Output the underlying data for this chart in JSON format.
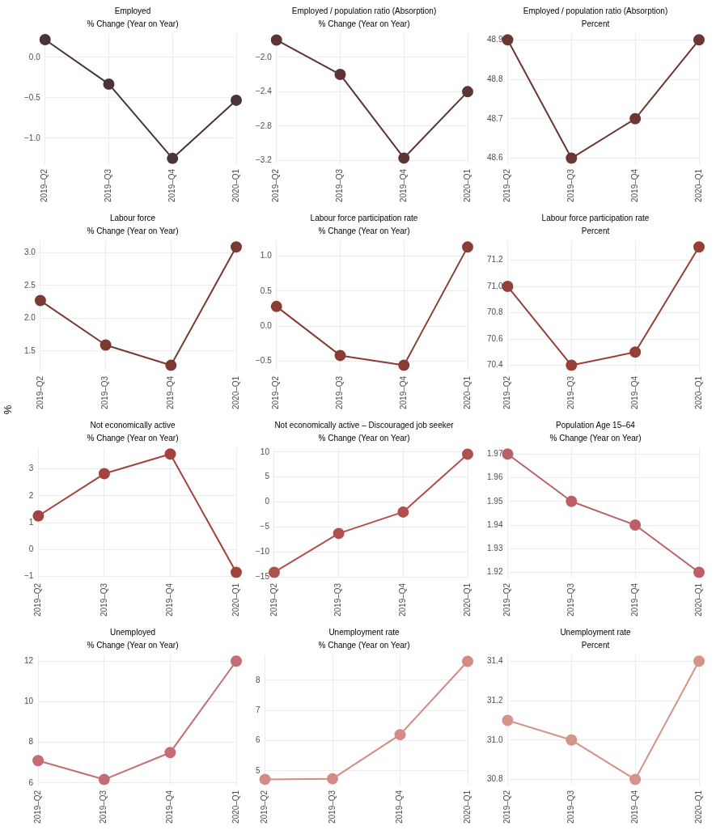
{
  "chart_data": [
    {
      "type": "line",
      "title": "Employed",
      "subtitle": "% Change (Year on Year)",
      "categories": [
        "2019–Q2",
        "2019–Q3",
        "2019–Q4",
        "2020–Q1"
      ],
      "values": [
        0.22,
        -0.33,
        -1.25,
        -0.53
      ],
      "color": "#4b3439",
      "ylim": [
        -1.32,
        0.29
      ],
      "yticks": [
        {
          "value": -1,
          "label": "−1.0"
        },
        {
          "value": -0.5,
          "label": "−0.5"
        },
        {
          "value": 0,
          "label": "0.0"
        }
      ],
      "grid": true,
      "marker": "circle",
      "legend": false
    },
    {
      "type": "line",
      "title": "Employed / population ratio (Absorption)",
      "subtitle": "% Change (Year on Year)",
      "categories": [
        "2019–Q2",
        "2019–Q3",
        "2019–Q4",
        "2020–Q1"
      ],
      "values": [
        -1.8,
        -2.2,
        -3.17,
        -2.4
      ],
      "color": "#5c3534",
      "ylim": [
        -3.24,
        -1.73
      ],
      "yticks": [
        {
          "value": -3.2,
          "label": "−3.2"
        },
        {
          "value": -2.8,
          "label": "−2.8"
        },
        {
          "value": -2.4,
          "label": "−2.4"
        },
        {
          "value": -2,
          "label": "−2.0"
        }
      ],
      "grid": true,
      "marker": "circle",
      "legend": false
    },
    {
      "type": "line",
      "title": "Employed / population ratio (Absorption)",
      "subtitle": "Percent",
      "categories": [
        "2019–Q2",
        "2019–Q3",
        "2019–Q4",
        "2020–Q1"
      ],
      "values": [
        48.9,
        48.6,
        48.7,
        48.9
      ],
      "color": "#6b3733",
      "ylim": [
        48.585,
        48.915
      ],
      "yticks": [
        48.6,
        48.7,
        48.8,
        48.9
      ],
      "grid": true,
      "marker": "circle",
      "legend": false
    },
    {
      "type": "line",
      "title": "Labour force",
      "subtitle": "% Change (Year on Year)",
      "ylabel": "%",
      "categories": [
        "2019–Q2",
        "2019–Q3",
        "2019–Q4",
        "2020–Q1"
      ],
      "values": [
        2.27,
        1.59,
        1.28,
        3.09
      ],
      "color": "#7a3a33",
      "ylim": [
        1.19,
        3.18
      ],
      "yticks": [
        1.5,
        {
          "value": 2,
          "label": "2.0"
        },
        2.5,
        {
          "value": 3,
          "label": "3.0"
        }
      ],
      "grid": true,
      "marker": "circle",
      "legend": false
    },
    {
      "type": "line",
      "title": "Labour force participation rate",
      "subtitle": "% Change (Year on Year)",
      "categories": [
        "2019–Q2",
        "2019–Q3",
        "2019–Q4",
        "2020–Q1"
      ],
      "values": [
        0.28,
        -0.42,
        -0.56,
        1.13
      ],
      "color": "#8a3d34",
      "ylim": [
        -0.645,
        1.215
      ],
      "yticks": [
        {
          "value": -0.5,
          "label": "−0.5"
        },
        {
          "value": 0,
          "label": "0.0"
        },
        0.5,
        {
          "value": 1,
          "label": "1.0"
        }
      ],
      "grid": true,
      "marker": "circle",
      "legend": false
    },
    {
      "type": "line",
      "title": "Labour force participation rate",
      "subtitle": "Percent",
      "categories": [
        "2019–Q2",
        "2019–Q3",
        "2019–Q4",
        "2020–Q1"
      ],
      "values": [
        71.0,
        70.4,
        70.5,
        71.3
      ],
      "color": "#963f36",
      "ylim": [
        70.355,
        71.345
      ],
      "yticks": [
        70.4,
        70.6,
        70.8,
        {
          "value": 71,
          "label": "71.0"
        },
        71.2
      ],
      "grid": true,
      "marker": "circle",
      "legend": false
    },
    {
      "type": "line",
      "title": "Not economically active",
      "subtitle": "% Change (Year on Year)",
      "categories": [
        "2019–Q2",
        "2019–Q3",
        "2019–Q4",
        "2020–Q1"
      ],
      "values": [
        1.25,
        2.82,
        3.55,
        -0.85
      ],
      "color": "#a2433d",
      "ylim": [
        -1.07,
        3.77
      ],
      "yticks": [
        {
          "value": -1,
          "label": "−1"
        },
        0,
        1,
        2,
        3
      ],
      "grid": true,
      "marker": "circle",
      "legend": false
    },
    {
      "type": "line",
      "title": "Not economically active – Discouraged job seeker",
      "subtitle": "% Change (Year on Year)",
      "categories": [
        "2019–Q2",
        "2019–Q3",
        "2019–Q4",
        "2020–Q1"
      ],
      "values": [
        -14.1,
        -6.3,
        -2.0,
        9.6
      ],
      "color": "#b0504f",
      "ylim": [
        -15.3,
        10.8
      ],
      "yticks": [
        {
          "value": -15,
          "label": "−15"
        },
        {
          "value": -10,
          "label": "−10"
        },
        {
          "value": -5,
          "label": "−5"
        },
        0,
        5,
        10
      ],
      "grid": true,
      "marker": "circle",
      "legend": false
    },
    {
      "type": "line",
      "title": "Population Age 15–64",
      "subtitle": "% Change (Year on Year)",
      "categories": [
        "2019–Q2",
        "2019–Q3",
        "2019–Q4",
        "2020–Q1"
      ],
      "values": [
        1.97,
        1.95,
        1.94,
        1.92
      ],
      "color": "#bc5f66",
      "ylim": [
        1.9175,
        1.9725
      ],
      "yticks": [
        1.92,
        1.93,
        1.94,
        1.95,
        1.96,
        1.97
      ],
      "grid": true,
      "marker": "circle",
      "legend": false
    },
    {
      "type": "line",
      "title": "Unemployed",
      "subtitle": "% Change (Year on Year)",
      "categories": [
        "2019–Q2",
        "2019–Q3",
        "2019–Q4",
        "2020–Q1"
      ],
      "values": [
        7.1,
        6.17,
        7.5,
        12.0
      ],
      "color": "#c46d74",
      "ylim": [
        5.88,
        12.29
      ],
      "yticks": [
        6,
        8,
        10,
        12
      ],
      "grid": true,
      "marker": "circle",
      "legend": false
    },
    {
      "type": "line",
      "title": "Unemployment rate",
      "subtitle": "% Change (Year on Year)",
      "categories": [
        "2019–Q2",
        "2019–Q3",
        "2019–Q4",
        "2020–Q1"
      ],
      "values": [
        4.72,
        4.74,
        6.2,
        8.63
      ],
      "color": "#d48b84",
      "ylim": [
        4.52,
        8.83
      ],
      "yticks": [
        5,
        6,
        7,
        8
      ],
      "grid": true,
      "marker": "circle",
      "legend": false
    },
    {
      "type": "line",
      "title": "Unemployment rate",
      "subtitle": "Percent",
      "categories": [
        "2019–Q2",
        "2019–Q3",
        "2019–Q4",
        "2020–Q1"
      ],
      "values": [
        31.1,
        31.0,
        30.8,
        31.4
      ],
      "color": "#d69389",
      "ylim": [
        30.77,
        31.43
      ],
      "yticks": [
        30.8,
        {
          "value": 31,
          "label": "31.0"
        },
        31.2,
        31.4
      ],
      "grid": true,
      "marker": "circle",
      "legend": false
    }
  ]
}
